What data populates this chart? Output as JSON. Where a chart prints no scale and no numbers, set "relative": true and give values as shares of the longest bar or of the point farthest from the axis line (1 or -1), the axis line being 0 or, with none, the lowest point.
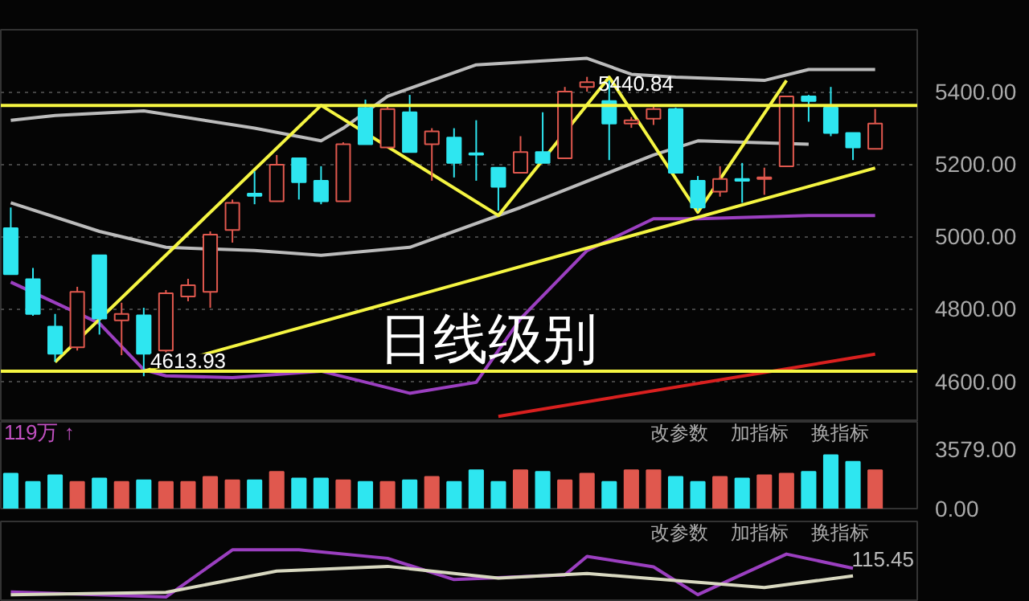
{
  "chart_data": [
    {
      "type": "candlestick",
      "categories": [
        null,
        null,
        null,
        null,
        null,
        null,
        null,
        null,
        null,
        null,
        null,
        null,
        null,
        null,
        null,
        null,
        null,
        null,
        null,
        null,
        null,
        null,
        null,
        null,
        null,
        null,
        null,
        null,
        null,
        null,
        null,
        null,
        null,
        null,
        null,
        null,
        null,
        null,
        null,
        null
      ],
      "ohlc": [
        [
          5023,
          5080,
          4896,
          4896
        ],
        [
          4882,
          4913,
          4781,
          4786
        ],
        [
          4751,
          4786,
          4654,
          4676
        ],
        [
          4694,
          4861,
          4685,
          4847
        ],
        [
          4948,
          4948,
          4729,
          4773
        ],
        [
          4768,
          4817,
          4672,
          4786
        ],
        [
          4782,
          4803,
          4613.93,
          4676
        ],
        [
          4685,
          4852,
          4680,
          4843
        ],
        [
          4834,
          4883,
          4821,
          4865
        ],
        [
          4847,
          5014,
          4803,
          5005
        ],
        [
          5018,
          5102,
          4983,
          5093
        ],
        [
          5118,
          5180,
          5089,
          5112
        ],
        [
          5097,
          5225,
          5097,
          5198
        ],
        [
          5216,
          5216,
          5102,
          5150
        ],
        [
          5154,
          5194,
          5089,
          5097
        ],
        [
          5097,
          5260,
          5097,
          5255
        ],
        [
          5355,
          5378,
          5255,
          5255
        ],
        [
          5246,
          5360,
          5246,
          5352
        ],
        [
          5343,
          5391,
          5233,
          5233
        ],
        [
          5255,
          5299,
          5154,
          5290
        ],
        [
          5273,
          5299,
          5163,
          5203
        ],
        [
          5230,
          5321,
          5154,
          5226
        ],
        [
          5190,
          5190,
          5071,
          5137
        ],
        [
          5176,
          5277,
          5176,
          5233
        ],
        [
          5233,
          5343,
          5203,
          5203
        ],
        [
          5216,
          5413,
          5216,
          5400
        ],
        [
          5413,
          5440.84,
          5400,
          5426
        ],
        [
          5374,
          5431,
          5211,
          5312
        ],
        [
          5312,
          5330,
          5300,
          5321
        ],
        [
          5325,
          5360,
          5308,
          5352
        ],
        [
          5352,
          5356,
          5176,
          5176
        ],
        [
          5154,
          5167,
          5071,
          5080
        ],
        [
          5124,
          5194,
          5110,
          5159
        ],
        [
          5159,
          5203,
          5093,
          5154
        ],
        [
          5159,
          5190,
          5115,
          5163
        ],
        [
          5194,
          5387,
          5194,
          5387
        ],
        [
          5387,
          5391,
          5317,
          5374
        ],
        [
          5356,
          5413,
          5277,
          5286
        ],
        [
          5286,
          5286,
          5211,
          5246
        ],
        [
          5242,
          5352,
          5242,
          5312
        ]
      ],
      "colors": [
        "#2ee6f0",
        "#2ee6f0",
        "#2ee6f0",
        "#e0584e",
        "#2ee6f0",
        "#e0584e",
        "#2ee6f0",
        "#e0584e",
        "#e0584e",
        "#e0584e",
        "#e0584e",
        "#2ee6f0",
        "#e0584e",
        "#2ee6f0",
        "#2ee6f0",
        "#e0584e",
        "#2ee6f0",
        "#e0584e",
        "#2ee6f0",
        "#e0584e",
        "#2ee6f0",
        "#2ee6f0",
        "#2ee6f0",
        "#e0584e",
        "#2ee6f0",
        "#e0584e",
        "#e0584e",
        "#2ee6f0",
        "#e0584e",
        "#e0584e",
        "#2ee6f0",
        "#2ee6f0",
        "#e0584e",
        "#2ee6f0",
        "#e0584e",
        "#e0584e",
        "#2ee6f0",
        "#2ee6f0",
        "#2ee6f0",
        "#e0584e"
      ],
      "series": [
        {
          "type": "line",
          "color": "#bbbbbb",
          "values": [
            5321,
            null,
            5334,
            null,
            null,
            null,
            5347,
            null,
            null,
            null,
            null,
            5299,
            null,
            null,
            5264,
            5299,
            null,
            5387,
            null,
            null,
            null,
            5474,
            null,
            null,
            null,
            null,
            5492,
            null,
            5448,
            null,
            5440,
            null,
            null,
            null,
            5431,
            null,
            5461,
            null,
            null,
            5461
          ]
        },
        {
          "type": "line",
          "color": "#bbbbbb",
          "values": [
            5093,
            null,
            null,
            null,
            5014,
            null,
            null,
            4970,
            null,
            null,
            null,
            4961,
            null,
            null,
            4948,
            null,
            null,
            null,
            4970,
            null,
            null,
            null,
            null,
            5080,
            null,
            null,
            null,
            null,
            null,
            5225,
            null,
            5264,
            null,
            null,
            null,
            null,
            5255,
            null,
            null,
            null
          ]
        },
        {
          "type": "line",
          "color": "#9b3fc0",
          "values": [
            4874,
            null,
            null,
            null,
            4760,
            null,
            4632,
            4615,
            null,
            null,
            4610,
            null,
            null,
            null,
            4628,
            null,
            null,
            null,
            4567,
            null,
            null,
            4597,
            null,
            4773,
            null,
            null,
            4961,
            null,
            null,
            5049,
            null,
            5049,
            null,
            null,
            null,
            null,
            5058,
            null,
            null,
            5058
          ]
        },
        {
          "type": "line",
          "color": "#f5f542",
          "values": [
            null,
            null,
            4653,
            null,
            null,
            null,
            null,
            null,
            null,
            null,
            null,
            null,
            null,
            null,
            5362,
            null,
            null,
            null,
            null,
            null,
            null,
            null,
            5058,
            null,
            null,
            null,
            null,
            5440,
            null,
            null,
            null,
            5067,
            null,
            null,
            null,
            5431,
            null,
            null,
            null,
            null
          ]
        },
        {
          "type": "line",
          "color": "#f5f542",
          "values": [
            null,
            null,
            null,
            null,
            null,
            null,
            4628,
            null,
            null,
            null,
            null,
            null,
            null,
            null,
            null,
            null,
            null,
            null,
            null,
            null,
            null,
            null,
            null,
            null,
            null,
            null,
            null,
            null,
            null,
            null,
            null,
            null,
            null,
            null,
            null,
            null,
            null,
            null,
            null,
            5189
          ]
        },
        {
          "type": "line",
          "color": "#d9201f",
          "values": [
            null,
            null,
            null,
            null,
            null,
            null,
            null,
            null,
            null,
            null,
            null,
            null,
            null,
            null,
            null,
            null,
            null,
            null,
            null,
            null,
            null,
            null,
            4503,
            null,
            null,
            null,
            null,
            null,
            null,
            null,
            null,
            null,
            null,
            null,
            null,
            null,
            null,
            null,
            null,
            4675
          ]
        }
      ],
      "ref_lines": [
        {
          "axis": "y",
          "value": 5362,
          "color": "#f5f542"
        },
        {
          "axis": "y",
          "value": 4628,
          "color": "#f5f542"
        }
      ],
      "ylim": [
        4488,
        5571
      ],
      "yticks": [
        {
          "value": 4600,
          "label": "4600.00"
        },
        {
          "value": 4800,
          "label": "4800.00"
        },
        {
          "value": 5000,
          "label": "5000.00"
        },
        {
          "value": 5200,
          "label": "5200.00"
        },
        {
          "value": 5400,
          "label": "5400.00"
        }
      ],
      "grid": "y",
      "annotations": [
        "日线级别",
        {
          "text": "5440.84",
          "y": 5440.84
        },
        {
          "text": "4613.93",
          "y": 4613.93
        }
      ]
    },
    {
      "type": "bar",
      "title": "119万 ↑",
      "categories": [
        null,
        null,
        null,
        null,
        null,
        null,
        null,
        null,
        null,
        null,
        null,
        null,
        null,
        null,
        null,
        null,
        null,
        null,
        null,
        null,
        null,
        null,
        null,
        null,
        null,
        null,
        null,
        null,
        null,
        null,
        null,
        null,
        null,
        null,
        null,
        null,
        null,
        null,
        null,
        null
      ],
      "values": [
        2100,
        1600,
        2000,
        1600,
        1800,
        1600,
        1700,
        1600,
        1600,
        1900,
        1700,
        1700,
        2200,
        1800,
        1800,
        1700,
        1600,
        1600,
        1700,
        1900,
        1600,
        2300,
        1600,
        2300,
        2200,
        1700,
        2100,
        1600,
        2300,
        2300,
        1900,
        1600,
        1900,
        1800,
        2000,
        2100,
        2200,
        3200,
        2800,
        2300
      ],
      "colors": [
        "#2ee6f0",
        "#2ee6f0",
        "#2ee6f0",
        "#e0584e",
        "#2ee6f0",
        "#e0584e",
        "#2ee6f0",
        "#e0584e",
        "#e0584e",
        "#e0584e",
        "#e0584e",
        "#2ee6f0",
        "#e0584e",
        "#2ee6f0",
        "#2ee6f0",
        "#e0584e",
        "#2ee6f0",
        "#e0584e",
        "#2ee6f0",
        "#e0584e",
        "#2ee6f0",
        "#2ee6f0",
        "#2ee6f0",
        "#e0584e",
        "#2ee6f0",
        "#e0584e",
        "#e0584e",
        "#2ee6f0",
        "#e0584e",
        "#e0584e",
        "#2ee6f0",
        "#2ee6f0",
        "#e0584e",
        "#2ee6f0",
        "#e0584e",
        "#e0584e",
        "#2ee6f0",
        "#2ee6f0",
        "#2ee6f0",
        "#e0584e"
      ],
      "ylim": [
        0,
        5200
      ],
      "yticks": [
        {
          "value": 0,
          "label": "0.00"
        },
        {
          "value": 3579,
          "label": "3579.00"
        }
      ],
      "annotations": [
        "改参数",
        "加指标",
        "换指标"
      ]
    },
    {
      "type": "line",
      "relative": true,
      "subtitle": "115.45",
      "categories": [
        null,
        null,
        null,
        null,
        null,
        null,
        null,
        null,
        null,
        null,
        null,
        null,
        null,
        null,
        null,
        null,
        null,
        null,
        null,
        null,
        null,
        null,
        null,
        null,
        null,
        null,
        null,
        null,
        null,
        null,
        null,
        null,
        null,
        null,
        null,
        null,
        null,
        null,
        null,
        null
      ],
      "series": [
        {
          "color": "#9b3fc0",
          "values": [
            0.11,
            null,
            null,
            null,
            null,
            null,
            null,
            0,
            null,
            null,
            1,
            null,
            null,
            1,
            null,
            null,
            null,
            0.82,
            null,
            null,
            0.37,
            null,
            null,
            null,
            null,
            0.47,
            0.86,
            null,
            null,
            0.64,
            null,
            0.05,
            null,
            null,
            null,
            0.91,
            null,
            null,
            0.61,
            null
          ]
        },
        {
          "color": "#d8d8c0",
          "values": [
            0.05,
            null,
            null,
            null,
            null,
            null,
            null,
            0.1,
            null,
            null,
            null,
            null,
            0.55,
            null,
            null,
            null,
            null,
            0.65,
            null,
            null,
            null,
            null,
            0.4,
            null,
            null,
            null,
            0.5,
            null,
            null,
            null,
            0.35,
            null,
            null,
            null,
            0.2,
            null,
            null,
            null,
            0.45,
            null
          ]
        }
      ],
      "annotations": [
        "改参数",
        "加指标",
        "换指标"
      ]
    }
  ]
}
